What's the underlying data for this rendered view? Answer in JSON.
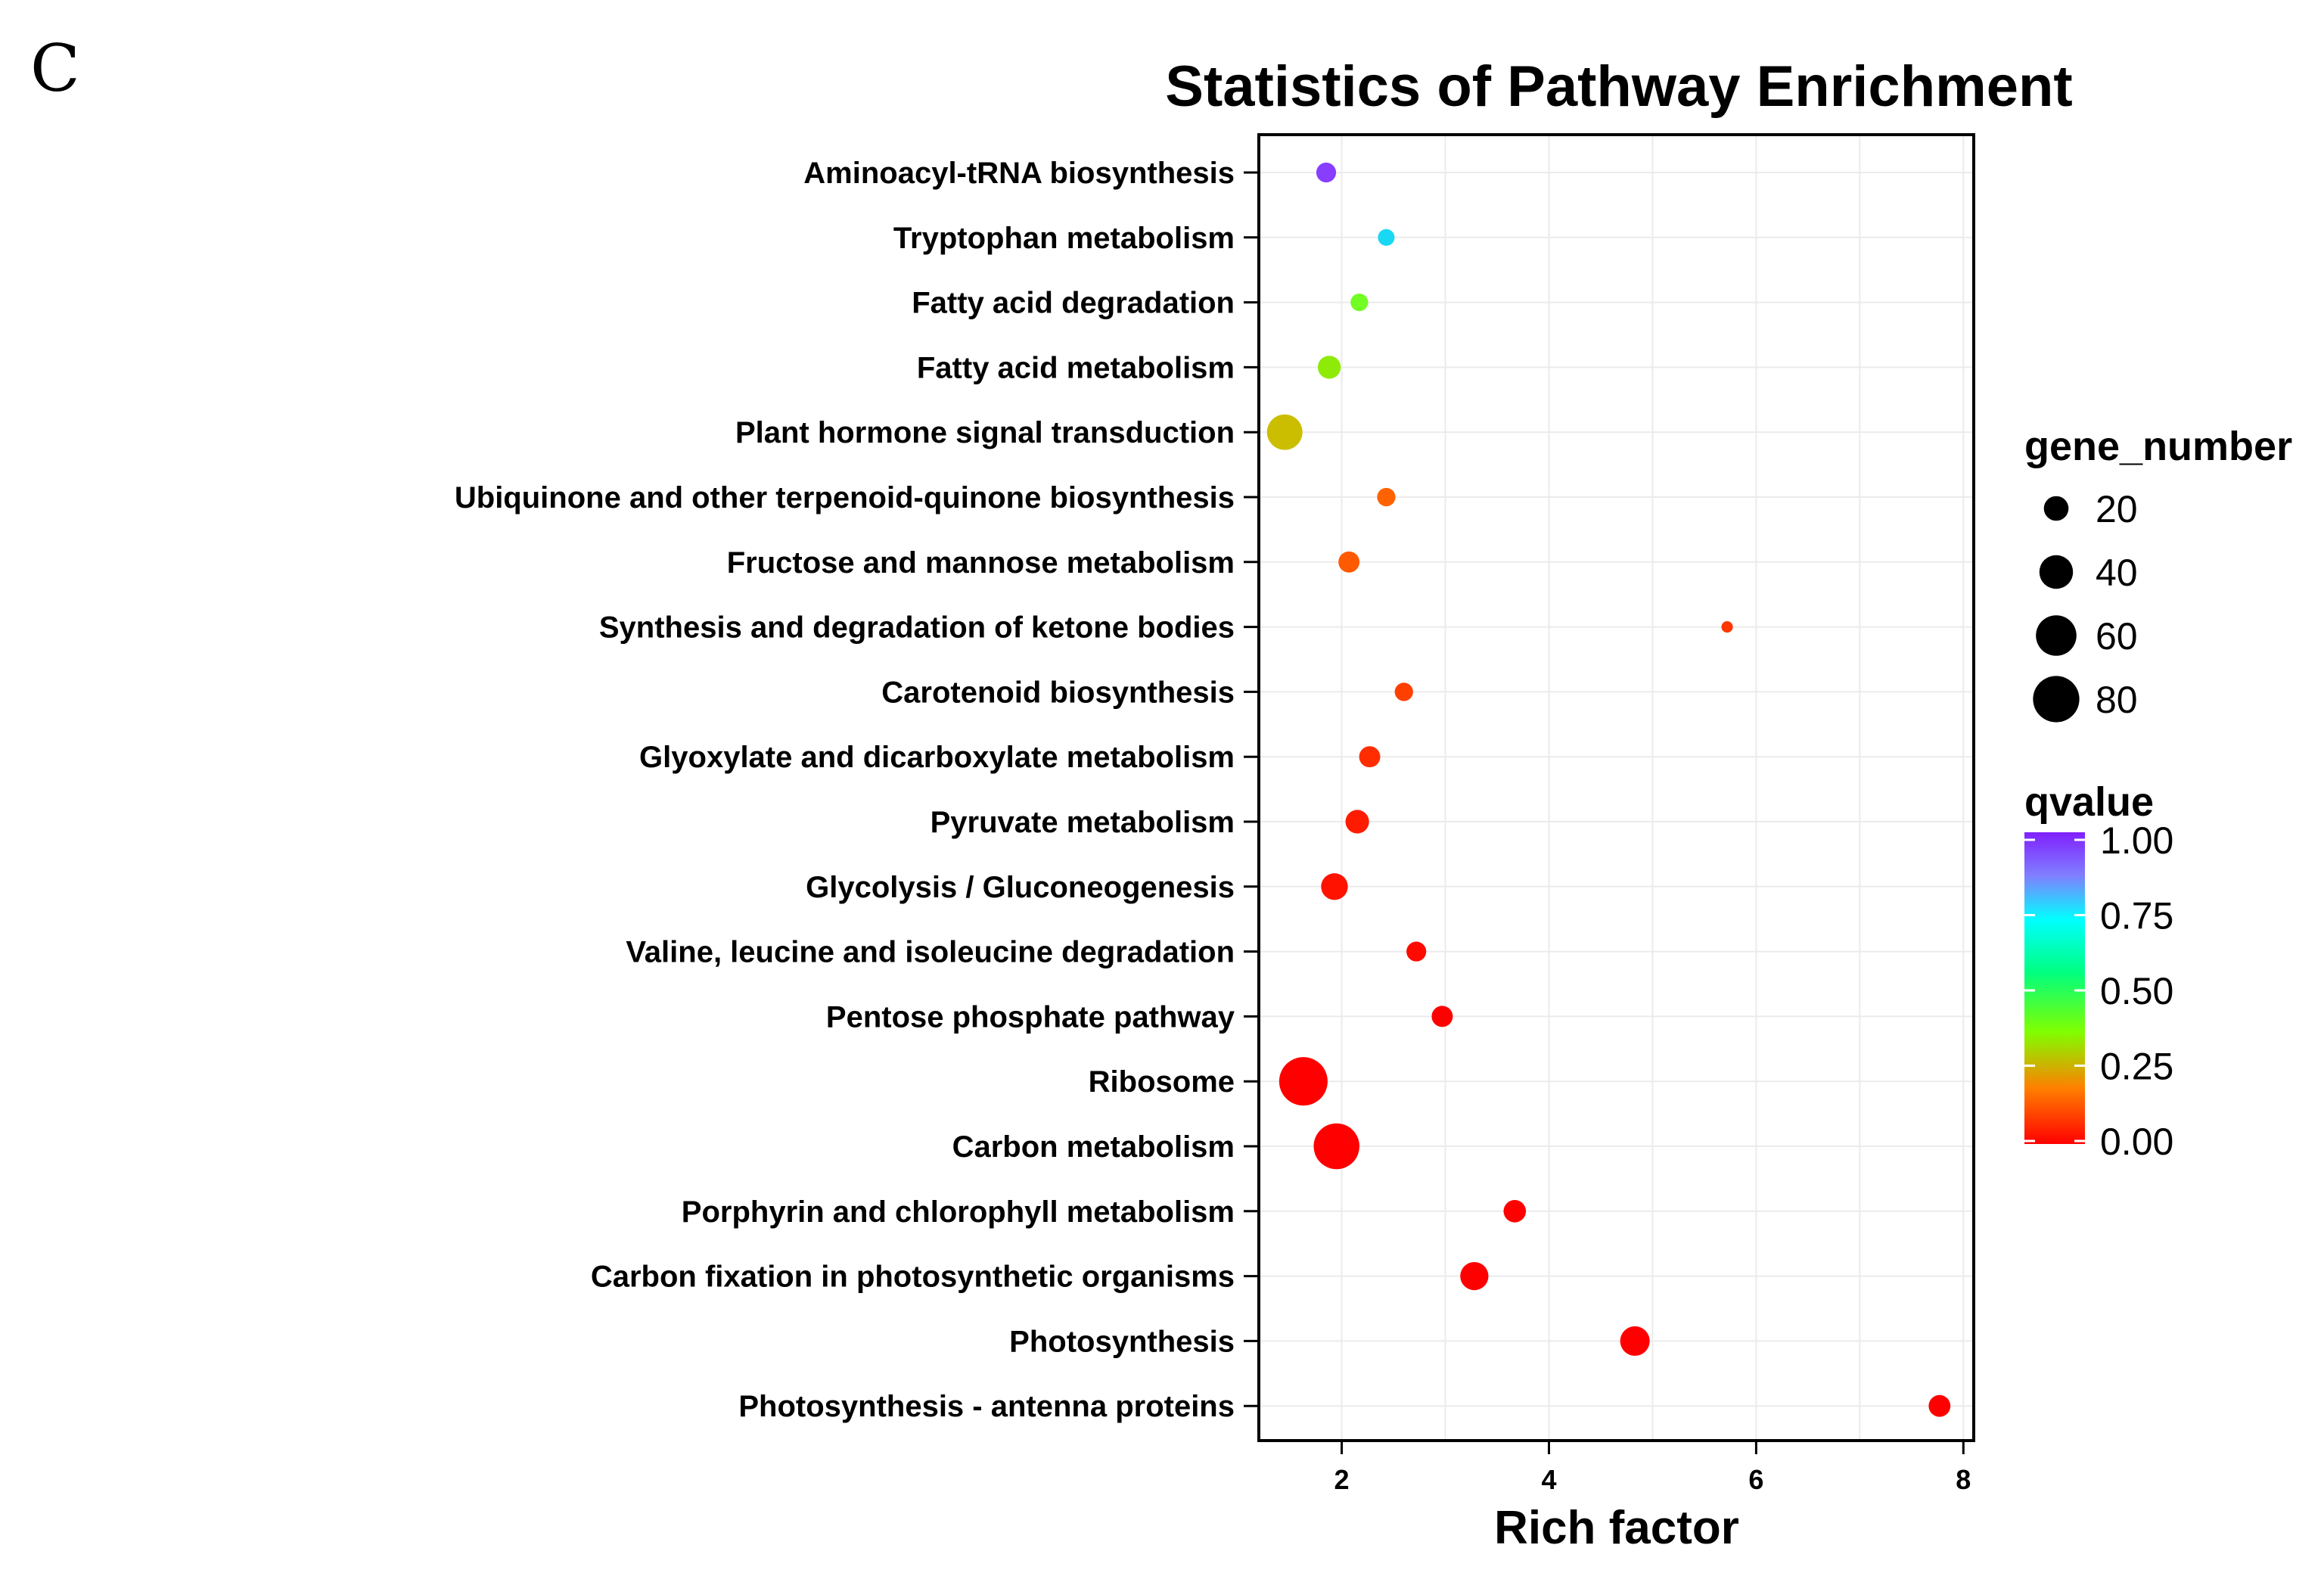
{
  "panel_label": "C",
  "chart_data": {
    "type": "scatter",
    "title": "Statistics of Pathway Enrichment",
    "xlabel": "Rich factor",
    "ylabel": "",
    "xlim": [
      1.2,
      8.1
    ],
    "xticks": [
      2,
      4,
      6,
      8
    ],
    "xtick_labels": [
      "2",
      "4",
      "6",
      "8"
    ],
    "grid": true,
    "categories": [
      "Aminoacyl-tRNA biosynthesis",
      "Tryptophan metabolism",
      "Fatty acid degradation",
      "Fatty acid metabolism",
      "Plant hormone signal transduction",
      "Ubiquinone and other terpenoid-quinone biosynthesis",
      "Fructose and mannose metabolism",
      "Synthesis and degradation of ketone bodies",
      "Carotenoid biosynthesis",
      "Glyoxylate and dicarboxylate metabolism",
      "Pyruvate metabolism",
      "Glycolysis / Gluconeogenesis",
      "Valine, leucine and isoleucine degradation",
      "Pentose phosphate pathway",
      "Ribosome",
      "Carbon metabolism",
      "Porphyrin and chlorophyll metabolism",
      "Carbon fixation in photosynthetic organisms",
      "Photosynthesis",
      "Photosynthesis - antenna proteins"
    ],
    "rich_factor": [
      1.85,
      2.43,
      2.17,
      1.88,
      1.45,
      2.43,
      2.07,
      5.72,
      2.6,
      2.27,
      2.15,
      1.93,
      2.72,
      2.97,
      1.63,
      1.95,
      3.67,
      3.28,
      4.83,
      7.77
    ],
    "gene_number": [
      12,
      8,
      9,
      17,
      45,
      10,
      14,
      3,
      10,
      14,
      18,
      24,
      12,
      14,
      88,
      78,
      16,
      27,
      30,
      15
    ],
    "qvalue": [
      0.97,
      0.6,
      0.35,
      0.28,
      0.22,
      0.11,
      0.1,
      0.06,
      0.07,
      0.05,
      0.03,
      0.02,
      0.01,
      0.0,
      0.0,
      0.0,
      0.0,
      0.0,
      0.0,
      0.0
    ],
    "size_legend": {
      "title": "gene_number",
      "values": [
        20,
        40,
        60,
        80
      ],
      "labels": [
        "20",
        "40",
        "60",
        "80"
      ]
    },
    "color_legend": {
      "title": "qvalue",
      "ticks": [
        1.0,
        0.75,
        0.5,
        0.25,
        0.0
      ],
      "labels": [
        "1.00",
        "0.75",
        "0.50",
        "0.25",
        "0.00"
      ],
      "colors": [
        "#ff0000",
        "#ff8000",
        "#88ff00",
        "#00ff80",
        "#00ffff",
        "#8040ff"
      ]
    }
  }
}
